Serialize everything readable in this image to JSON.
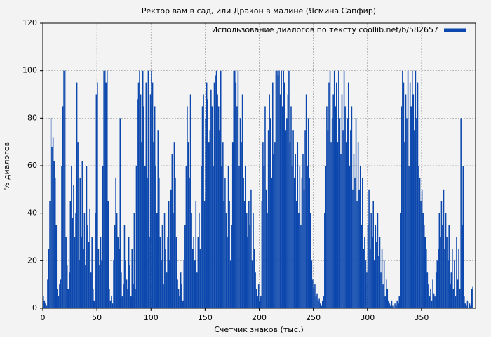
{
  "chart_data": {
    "type": "bar",
    "title": "Ректор вам в сад, или Дракон в малине (Ясмина Сапфир)",
    "x_label": "Счетчик знаков (тыс.)",
    "y_label": "% диалогов",
    "xlim": [
      0,
      400
    ],
    "xticks": [
      0,
      50,
      100,
      150,
      200,
      250,
      300,
      350
    ],
    "ylim": [
      0,
      120
    ],
    "yticks": [
      0,
      20,
      40,
      60,
      80,
      100,
      120
    ],
    "grid": true,
    "legend": "upper right",
    "x": [
      0,
      1,
      2,
      3,
      4,
      5,
      6,
      7,
      8,
      9,
      10,
      11,
      12,
      13,
      14,
      15,
      16,
      17,
      18,
      19,
      20,
      21,
      22,
      23,
      24,
      25,
      26,
      27,
      28,
      29,
      30,
      31,
      32,
      33,
      34,
      35,
      36,
      37,
      38,
      39,
      40,
      41,
      42,
      43,
      44,
      45,
      46,
      47,
      48,
      49,
      50,
      51,
      52,
      53,
      54,
      55,
      56,
      57,
      58,
      59,
      60,
      61,
      62,
      63,
      64,
      65,
      66,
      67,
      68,
      69,
      70,
      71,
      72,
      73,
      74,
      75,
      76,
      77,
      78,
      79,
      80,
      81,
      82,
      83,
      84,
      85,
      86,
      87,
      88,
      89,
      90,
      91,
      92,
      93,
      94,
      95,
      96,
      97,
      98,
      99,
      100,
      101,
      102,
      103,
      104,
      105,
      106,
      107,
      108,
      109,
      110,
      111,
      112,
      113,
      114,
      115,
      116,
      117,
      118,
      119,
      120,
      121,
      122,
      123,
      124,
      125,
      126,
      127,
      128,
      129,
      130,
      131,
      132,
      133,
      134,
      135,
      136,
      137,
      138,
      139,
      140,
      141,
      142,
      143,
      144,
      145,
      146,
      147,
      148,
      149,
      150,
      151,
      152,
      153,
      154,
      155,
      156,
      157,
      158,
      159,
      160,
      161,
      162,
      163,
      164,
      165,
      166,
      167,
      168,
      169,
      170,
      171,
      172,
      173,
      174,
      175,
      176,
      177,
      178,
      179,
      180,
      181,
      182,
      183,
      184,
      185,
      186,
      187,
      188,
      189,
      190,
      191,
      192,
      193,
      194,
      195,
      196,
      197,
      198,
      199,
      200,
      201,
      202,
      203,
      204,
      205,
      206,
      207,
      208,
      209,
      210,
      211,
      212,
      213,
      214,
      215,
      216,
      217,
      218,
      219,
      220,
      221,
      222,
      223,
      224,
      225,
      226,
      227,
      228,
      229,
      230,
      231,
      232,
      233,
      234,
      235,
      236,
      237,
      238,
      239,
      240,
      241,
      242,
      243,
      244,
      245,
      246,
      247,
      248,
      249,
      250,
      251,
      252,
      253,
      254,
      255,
      256,
      257,
      258,
      259,
      260,
      261,
      262,
      263,
      264,
      265,
      266,
      267,
      268,
      269,
      270,
      271,
      272,
      273,
      274,
      275,
      276,
      277,
      278,
      279,
      280,
      281,
      282,
      283,
      284,
      285,
      286,
      287,
      288,
      289,
      290,
      291,
      292,
      293,
      294,
      295,
      296,
      297,
      298,
      299,
      300,
      301,
      302,
      303,
      304,
      305,
      306,
      307,
      308,
      309,
      310,
      311,
      312,
      313,
      314,
      315,
      316,
      317,
      318,
      319,
      320,
      321,
      322,
      323,
      324,
      325,
      326,
      327,
      328,
      329,
      330,
      331,
      332,
      333,
      334,
      335,
      336,
      337,
      338,
      339,
      340,
      341,
      342,
      343,
      344,
      345,
      346,
      347,
      348,
      349,
      350,
      351,
      352,
      353,
      354,
      355,
      356,
      357,
      358,
      359,
      360,
      361,
      362,
      363,
      364,
      365,
      366,
      367,
      368,
      369,
      370,
      371,
      372,
      373,
      374,
      375,
      376,
      377,
      378,
      379,
      380,
      381,
      382,
      383,
      384,
      385,
      386,
      387,
      388,
      389,
      390,
      391,
      392,
      393,
      394,
      395,
      396,
      397
    ],
    "series": [
      {
        "name": "Использование диалогов по тексту coollib.net/b/582657",
        "color": "#0b47ad",
        "values": [
          5,
          3,
          2,
          1,
          12,
          25,
          45,
          80,
          68,
          72,
          62,
          55,
          35,
          8,
          5,
          10,
          12,
          60,
          85,
          100,
          100,
          30,
          18,
          8,
          15,
          45,
          60,
          38,
          52,
          30,
          40,
          95,
          70,
          20,
          55,
          30,
          62,
          25,
          40,
          18,
          60,
          35,
          28,
          42,
          15,
          30,
          8,
          3,
          40,
          90,
          95,
          25,
          18,
          30,
          20,
          60,
          100,
          100,
          95,
          100,
          45,
          8,
          3,
          5,
          2,
          20,
          35,
          55,
          40,
          30,
          25,
          80,
          15,
          5,
          10,
          35,
          20,
          12,
          8,
          30,
          18,
          5,
          25,
          10,
          40,
          8,
          60,
          88,
          95,
          100,
          90,
          70,
          100,
          85,
          60,
          95,
          55,
          100,
          30,
          90,
          100,
          95,
          70,
          85,
          60,
          40,
          75,
          55,
          30,
          20,
          35,
          10,
          40,
          25,
          15,
          30,
          45,
          20,
          50,
          65,
          40,
          70,
          55,
          30,
          12,
          8,
          5,
          15,
          10,
          3,
          20,
          35,
          60,
          85,
          70,
          55,
          90,
          40,
          25,
          30,
          20,
          45,
          15,
          30,
          40,
          25,
          60,
          85,
          90,
          45,
          80,
          95,
          88,
          70,
          75,
          92,
          85,
          60,
          95,
          98,
          100,
          90,
          85,
          75,
          100,
          60,
          70,
          45,
          55,
          40,
          30,
          60,
          45,
          20,
          35,
          70,
          100,
          100,
          95,
          85,
          100,
          60,
          80,
          70,
          90,
          55,
          45,
          60,
          40,
          30,
          45,
          35,
          50,
          20,
          40,
          25,
          15,
          8,
          5,
          10,
          3,
          5,
          45,
          70,
          60,
          85,
          50,
          40,
          75,
          90,
          80,
          55,
          95,
          65,
          70,
          100,
          100,
          98,
          100,
          90,
          100,
          85,
          100,
          95,
          75,
          80,
          90,
          100,
          70,
          85,
          60,
          75,
          55,
          65,
          45,
          70,
          40,
          60,
          35,
          55,
          65,
          50,
          75,
          90,
          60,
          80,
          55,
          40,
          20,
          12,
          8,
          10,
          5,
          6,
          3,
          4,
          2,
          1,
          3,
          5,
          40,
          60,
          85,
          75,
          95,
          100,
          70,
          80,
          90,
          100,
          85,
          95,
          70,
          100,
          80,
          65,
          90,
          75,
          100,
          85,
          70,
          80,
          95,
          60,
          75,
          85,
          50,
          65,
          55,
          80,
          45,
          70,
          50,
          60,
          35,
          55,
          25,
          30,
          20,
          15,
          35,
          50,
          25,
          40,
          30,
          45,
          20,
          35,
          28,
          40,
          22,
          30,
          15,
          25,
          10,
          20,
          5,
          12,
          8,
          3,
          2,
          1,
          3,
          1,
          0,
          2,
          1,
          3,
          2,
          5,
          40,
          85,
          100,
          95,
          70,
          90,
          80,
          100,
          60,
          95,
          85,
          100,
          90,
          75,
          100,
          80,
          95,
          60,
          55,
          45,
          50,
          40,
          35,
          30,
          25,
          15,
          10,
          5,
          8,
          3,
          12,
          6,
          5,
          15,
          20,
          25,
          40,
          30,
          45,
          35,
          50,
          25,
          40,
          30,
          20,
          35,
          10,
          15,
          25,
          8,
          20,
          5,
          30,
          12,
          25,
          8,
          80,
          35,
          60,
          5,
          2,
          1,
          3,
          0,
          2,
          1,
          8,
          9
        ]
      }
    ]
  }
}
